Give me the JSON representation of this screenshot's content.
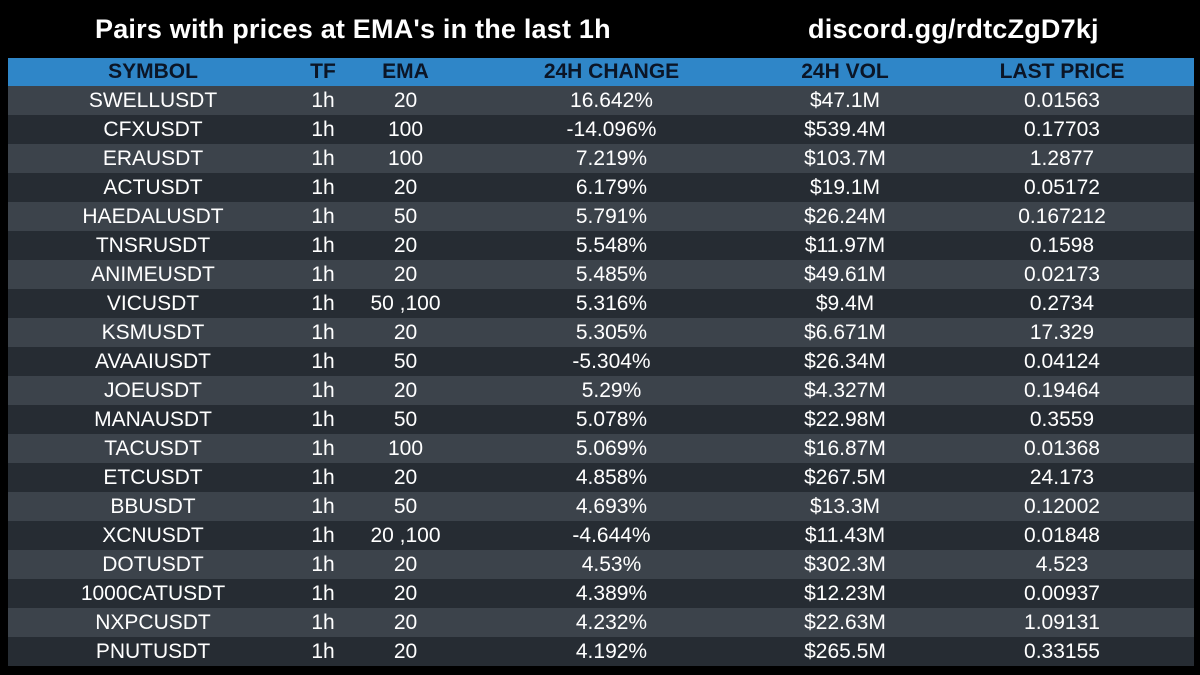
{
  "header": {
    "title": "Pairs with prices at EMA's in the last 1h",
    "link": "discord.gg/rdtcZgD7kj"
  },
  "table": {
    "columns": [
      "SYMBOL",
      "TF",
      "EMA",
      "24H CHANGE",
      "24H VOL",
      "LAST PRICE"
    ],
    "rows": [
      {
        "symbol": "SWELLUSDT",
        "tf": "1h",
        "ema": "20",
        "change": "16.642%",
        "vol": "$47.1M",
        "price": "0.01563"
      },
      {
        "symbol": "CFXUSDT",
        "tf": "1h",
        "ema": "100",
        "change": "-14.096%",
        "vol": "$539.4M",
        "price": "0.17703"
      },
      {
        "symbol": "ERAUSDT",
        "tf": "1h",
        "ema": "100",
        "change": "7.219%",
        "vol": "$103.7M",
        "price": "1.2877"
      },
      {
        "symbol": "ACTUSDT",
        "tf": "1h",
        "ema": "20",
        "change": "6.179%",
        "vol": "$19.1M",
        "price": "0.05172"
      },
      {
        "symbol": "HAEDALUSDT",
        "tf": "1h",
        "ema": "50",
        "change": "5.791%",
        "vol": "$26.24M",
        "price": "0.167212"
      },
      {
        "symbol": "TNSRUSDT",
        "tf": "1h",
        "ema": "20",
        "change": "5.548%",
        "vol": "$11.97M",
        "price": "0.1598"
      },
      {
        "symbol": "ANIMEUSDT",
        "tf": "1h",
        "ema": "20",
        "change": "5.485%",
        "vol": "$49.61M",
        "price": "0.02173"
      },
      {
        "symbol": "VICUSDT",
        "tf": "1h",
        "ema": "50 ,100",
        "change": "5.316%",
        "vol": "$9.4M",
        "price": "0.2734"
      },
      {
        "symbol": "KSMUSDT",
        "tf": "1h",
        "ema": "20",
        "change": "5.305%",
        "vol": "$6.671M",
        "price": "17.329"
      },
      {
        "symbol": "AVAAIUSDT",
        "tf": "1h",
        "ema": "50",
        "change": "-5.304%",
        "vol": "$26.34M",
        "price": "0.04124"
      },
      {
        "symbol": "JOEUSDT",
        "tf": "1h",
        "ema": "20",
        "change": "5.29%",
        "vol": "$4.327M",
        "price": "0.19464"
      },
      {
        "symbol": "MANAUSDT",
        "tf": "1h",
        "ema": "50",
        "change": "5.078%",
        "vol": "$22.98M",
        "price": "0.3559"
      },
      {
        "symbol": "TACUSDT",
        "tf": "1h",
        "ema": "100",
        "change": "5.069%",
        "vol": "$16.87M",
        "price": "0.01368"
      },
      {
        "symbol": "ETCUSDT",
        "tf": "1h",
        "ema": "20",
        "change": "4.858%",
        "vol": "$267.5M",
        "price": "24.173"
      },
      {
        "symbol": "BBUSDT",
        "tf": "1h",
        "ema": "50",
        "change": "4.693%",
        "vol": "$13.3M",
        "price": "0.12002"
      },
      {
        "symbol": "XCNUSDT",
        "tf": "1h",
        "ema": "20 ,100",
        "change": "-4.644%",
        "vol": "$11.43M",
        "price": "0.01848"
      },
      {
        "symbol": "DOTUSDT",
        "tf": "1h",
        "ema": "20",
        "change": "4.53%",
        "vol": "$302.3M",
        "price": "4.523"
      },
      {
        "symbol": "1000CATUSDT",
        "tf": "1h",
        "ema": "20",
        "change": "4.389%",
        "vol": "$12.23M",
        "price": "0.00937"
      },
      {
        "symbol": "NXPCUSDT",
        "tf": "1h",
        "ema": "20",
        "change": "4.232%",
        "vol": "$22.63M",
        "price": "1.09131"
      },
      {
        "symbol": "PNUTUSDT",
        "tf": "1h",
        "ema": "20",
        "change": "4.192%",
        "vol": "$265.5M",
        "price": "0.33155"
      }
    ]
  },
  "colors": {
    "background": "#000000",
    "header_bg": "#2f86c8",
    "header_text": "#0b1526",
    "row_dark": "#262c33",
    "row_light": "#3c434b",
    "text": "#ffffff"
  }
}
